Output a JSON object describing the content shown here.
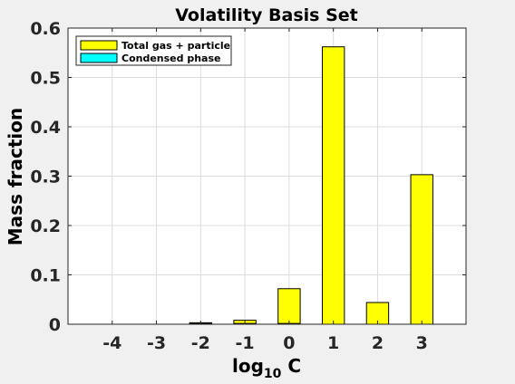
{
  "chart_data": {
    "type": "bar",
    "title": "Volatility Basis Set",
    "xlabel_main": "log",
    "xlabel_sub": "10",
    "xlabel_tail": " C",
    "ylabel": "Mass fraction",
    "categories": [
      "-4",
      "-3",
      "-2",
      "-1",
      "0",
      "1",
      "2",
      "3"
    ],
    "x": [
      -4,
      -3,
      -2,
      -1,
      0,
      1,
      2,
      3
    ],
    "xlim": [
      -5,
      4
    ],
    "ylim": [
      0,
      0.6
    ],
    "yticks": [
      0,
      0.1,
      0.2,
      0.3,
      0.4,
      0.5,
      0.6
    ],
    "ytick_labels": [
      "0",
      "0.1",
      "0.2",
      "0.3",
      "0.4",
      "0.5",
      "0.6"
    ],
    "grid": true,
    "legend_position": "top-left",
    "series": [
      {
        "name": "Total gas + particle",
        "color": "#ffff00",
        "values": [
          0,
          0,
          0.003,
          0.008,
          0.072,
          0.562,
          0.044,
          0.303
        ]
      },
      {
        "name": "Condensed phase",
        "color": "#00ffff",
        "values": [
          0,
          0,
          0.0015,
          0.0015,
          0.0015,
          0,
          0,
          0
        ]
      }
    ]
  }
}
